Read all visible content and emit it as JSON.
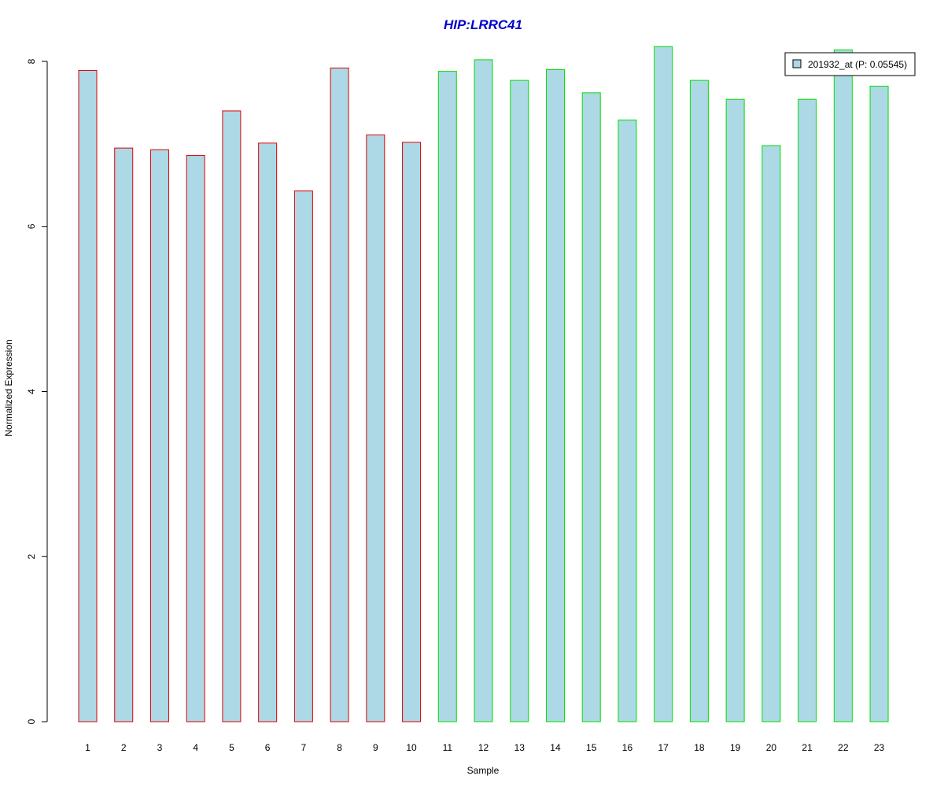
{
  "chart_data": {
    "type": "bar",
    "title": "HIP:LRRC41",
    "xlabel": "Sample",
    "ylabel": "Normalized Expression",
    "categories": [
      "1",
      "2",
      "3",
      "4",
      "5",
      "6",
      "7",
      "8",
      "9",
      "10",
      "11",
      "12",
      "13",
      "14",
      "15",
      "16",
      "17",
      "18",
      "19",
      "20",
      "21",
      "22",
      "23"
    ],
    "series": [
      {
        "name": "201932_at (P: 0.05545)",
        "values": [
          7.89,
          6.95,
          6.93,
          6.86,
          7.4,
          7.01,
          6.43,
          7.92,
          7.11,
          7.02,
          7.88,
          8.02,
          7.77,
          7.9,
          7.62,
          7.29,
          8.18,
          7.77,
          7.54,
          6.98,
          7.54,
          8.14,
          7.7
        ]
      }
    ],
    "group_of_bar": [
      1,
      1,
      1,
      1,
      1,
      1,
      1,
      1,
      1,
      1,
      2,
      2,
      2,
      2,
      2,
      2,
      2,
      2,
      2,
      2,
      2,
      2,
      2
    ],
    "ylim": [
      0,
      8.2
    ],
    "yticks": [
      0,
      2,
      4,
      6,
      8
    ],
    "grid": false,
    "legend_position": "top-right"
  },
  "colors": {
    "title": "#0000cc",
    "bar_fill": "#add8e6",
    "group1_border": "#e00000",
    "group2_border": "#00e000",
    "axis": "#000000",
    "legend_border": "#000000"
  }
}
